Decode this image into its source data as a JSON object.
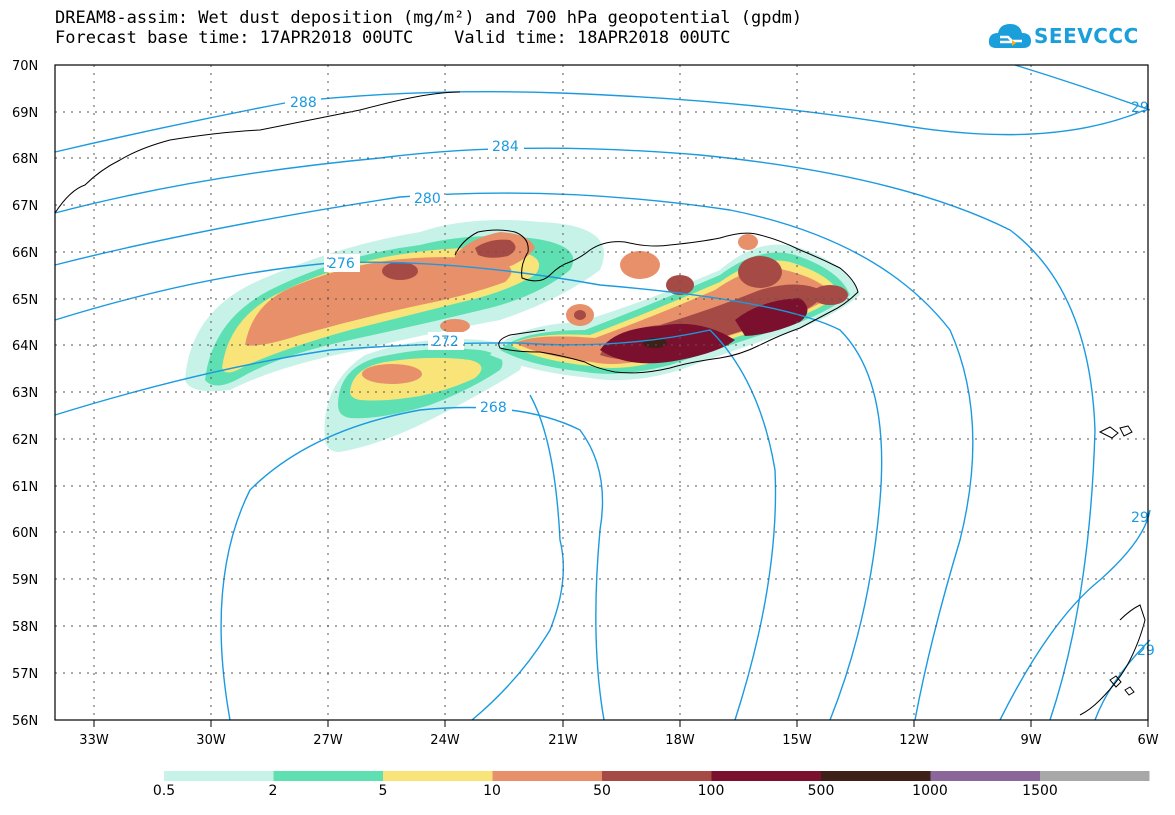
{
  "title": {
    "line1": "DREAM8-assim: Wet dust deposition (mg/m²) and 700 hPa geopotential (gpdm)",
    "line2": "Forecast base time: 17APR2018 00UTC    Valid time: 18APR2018 00UTC"
  },
  "logo": {
    "text": "SEEVCCC",
    "icon": "cloud-logo-icon",
    "color": "#1a9fdb"
  },
  "map_data": {
    "type": "contour-map",
    "lat_ticks": [
      "70N",
      "69N",
      "68N",
      "67N",
      "66N",
      "65N",
      "64N",
      "63N",
      "62N",
      "61N",
      "60N",
      "59N",
      "58N",
      "57N",
      "56N"
    ],
    "lon_ticks": [
      "33W",
      "30W",
      "27W",
      "24W",
      "21W",
      "18W",
      "15W",
      "12W",
      "9W",
      "6W"
    ],
    "contour_color": "#1b9ae0",
    "contour_labels": [
      "288",
      "284",
      "280",
      "276",
      "272",
      "268",
      "29",
      "29",
      "29"
    ]
  },
  "colorbar": {
    "labels": [
      "0.5",
      "2",
      "5",
      "10",
      "50",
      "100",
      "500",
      "1000",
      "1500"
    ],
    "colors": [
      "#c7f2e8",
      "#5ee0b3",
      "#f9e47a",
      "#e8906a",
      "#a64a46",
      "#7a0f2e",
      "#3f2018",
      "#8b6698",
      "#a8a8a8"
    ]
  }
}
